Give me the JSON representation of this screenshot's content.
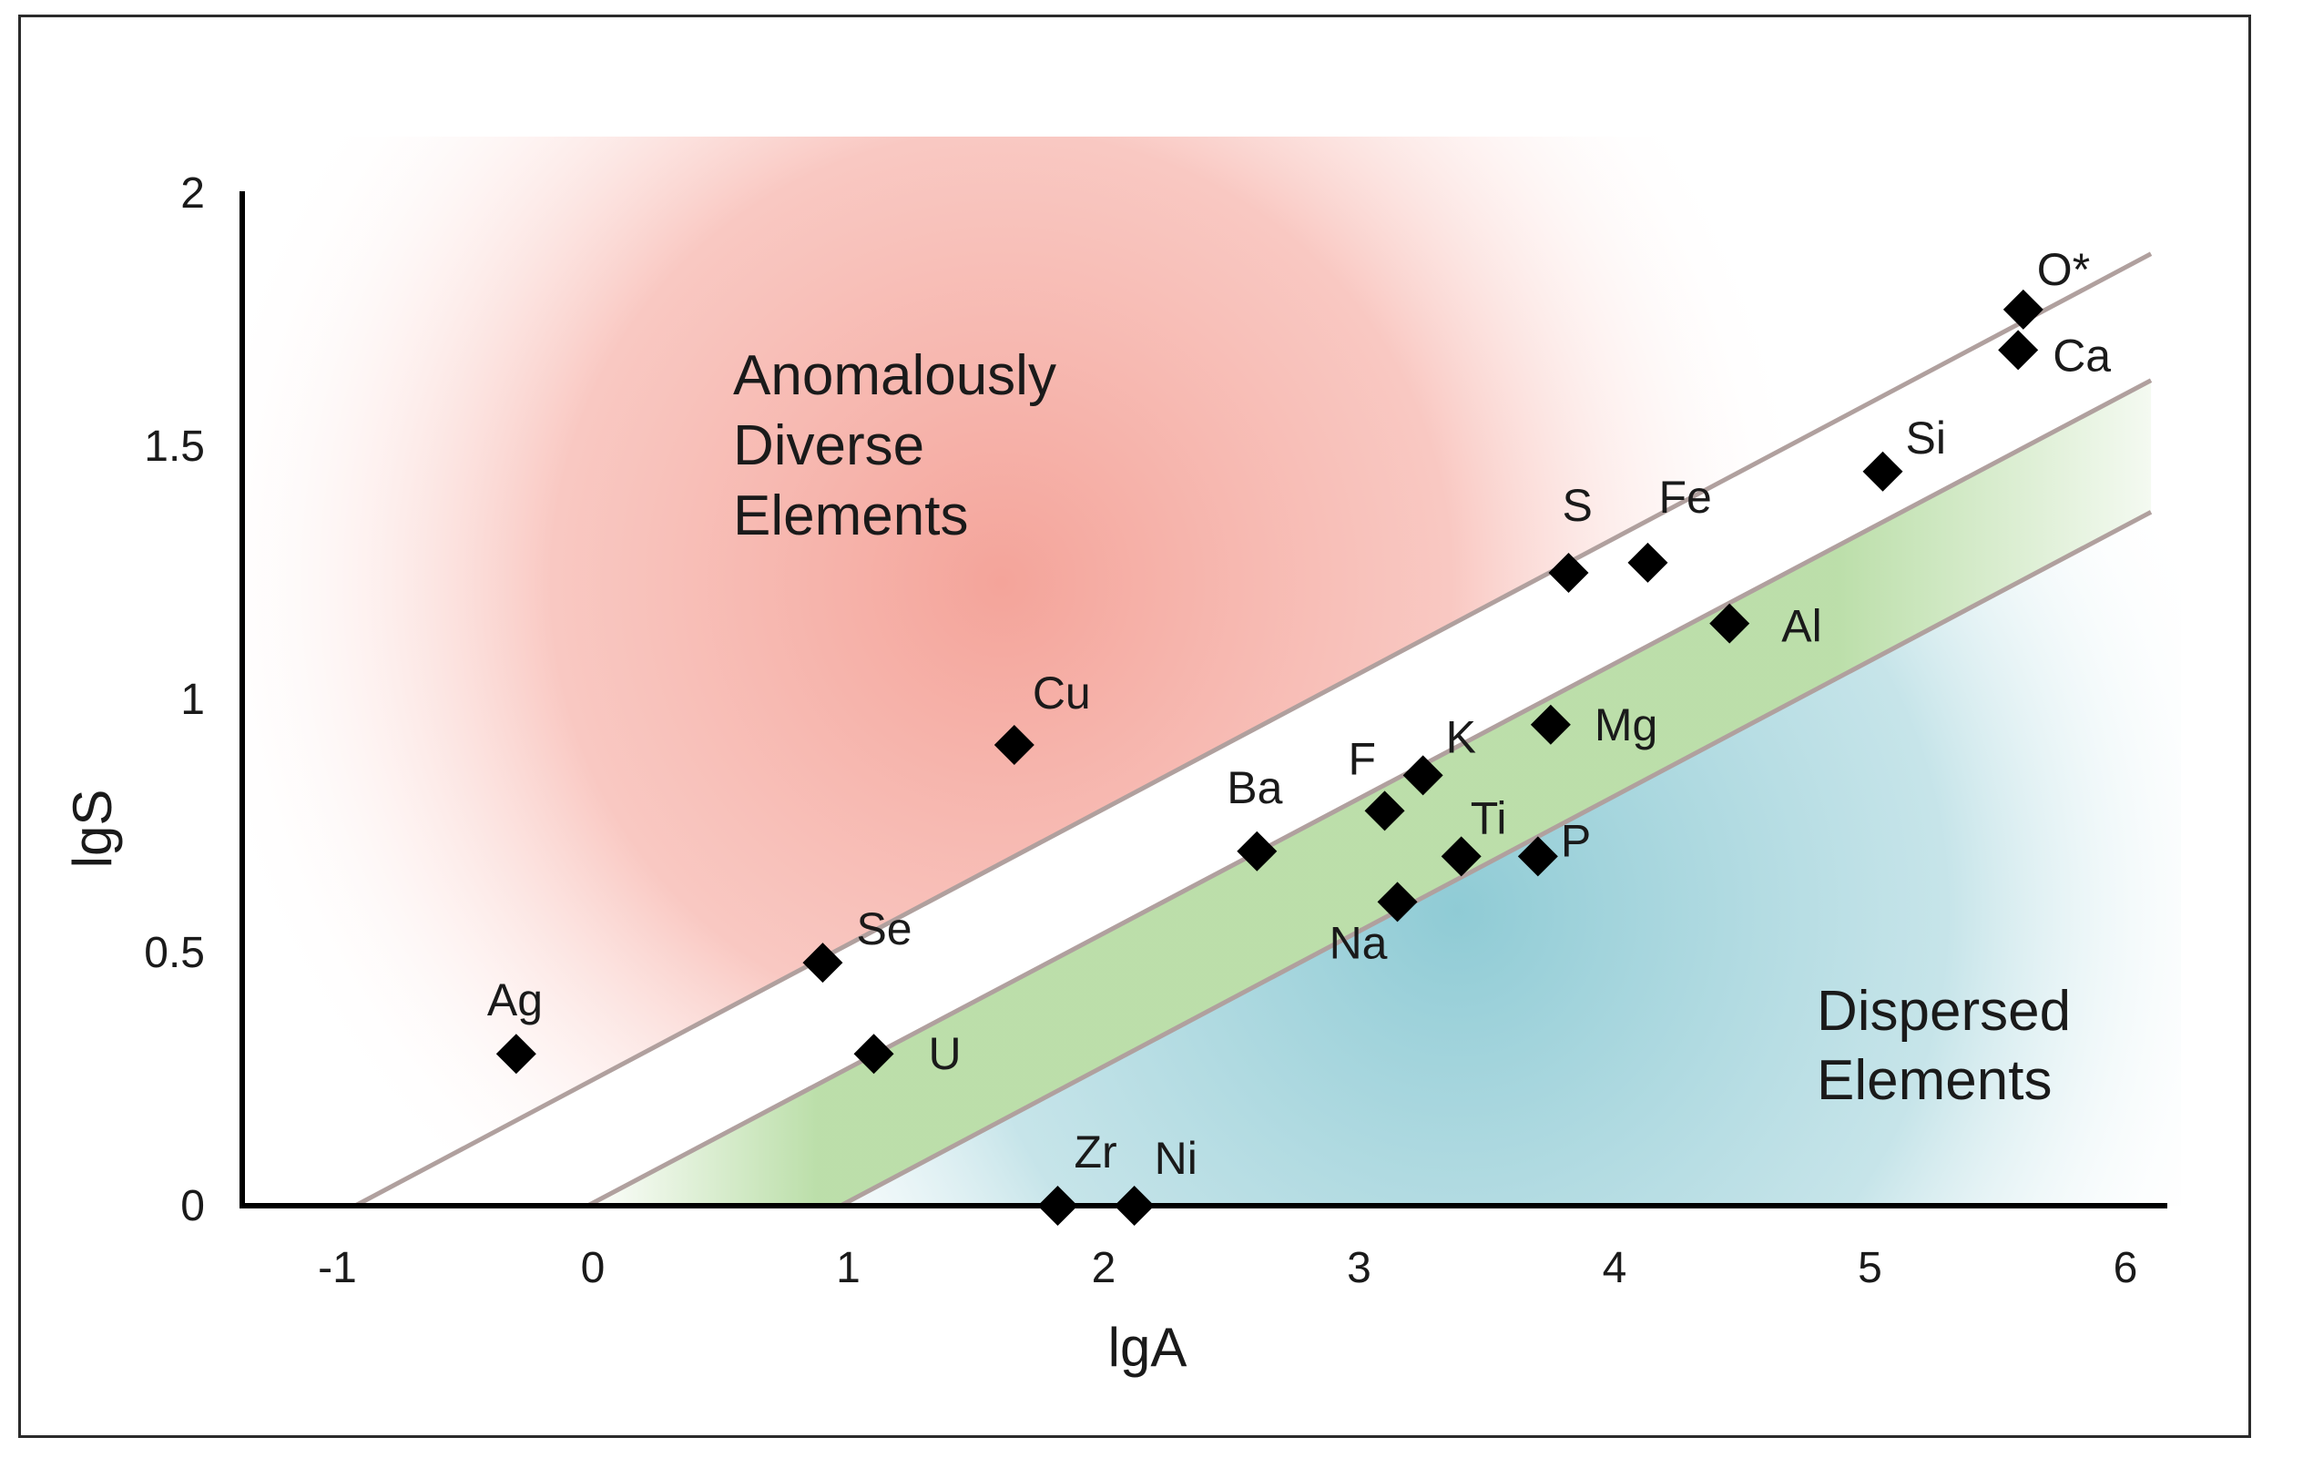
{
  "chart_data": {
    "type": "scatter",
    "title": "",
    "xlabel": "lgA",
    "ylabel": "lgS",
    "xlim": [
      -1.4,
      6.2
    ],
    "ylim": [
      0,
      2
    ],
    "x_ticks": [
      "-1",
      "0",
      "1",
      "2",
      "3",
      "4",
      "5",
      "6"
    ],
    "y_ticks": [
      "0",
      "0.5",
      "1",
      "1.5",
      "2"
    ],
    "grid": false,
    "region_labels": {
      "anomalous": [
        "Anomalously",
        "Diverse",
        "Elements"
      ],
      "dispersed": [
        "Dispersed",
        "Elements"
      ]
    },
    "reference_lines": [
      {
        "name": "upper",
        "x": [
          -0.93,
          6.1
        ],
        "y": [
          0,
          1.88
        ]
      },
      {
        "name": "middle",
        "x": [
          -0.02,
          6.1
        ],
        "y": [
          0,
          1.63
        ]
      },
      {
        "name": "lower",
        "x": [
          0.97,
          6.1
        ],
        "y": [
          0,
          1.37
        ]
      }
    ],
    "colors": {
      "anomalous": "#f4a49a",
      "dispersed": "#8fcbd5",
      "band": "#b4dba0",
      "line": "#b0a09e",
      "marker": "#000000"
    },
    "points": [
      {
        "label": "Ag",
        "x": -0.3,
        "y": 0.3
      },
      {
        "label": "Se",
        "x": 0.9,
        "y": 0.48
      },
      {
        "label": "U",
        "x": 1.1,
        "y": 0.3
      },
      {
        "label": "Cu",
        "x": 1.65,
        "y": 0.91
      },
      {
        "label": "Zr",
        "x": 1.82,
        "y": 0.0
      },
      {
        "label": "Ni",
        "x": 2.12,
        "y": 0.0
      },
      {
        "label": "Ba",
        "x": 2.6,
        "y": 0.7
      },
      {
        "label": "F",
        "x": 3.1,
        "y": 0.78
      },
      {
        "label": "Na",
        "x": 3.15,
        "y": 0.6
      },
      {
        "label": "K",
        "x": 3.25,
        "y": 0.85
      },
      {
        "label": "Ti",
        "x": 3.4,
        "y": 0.69
      },
      {
        "label": "P",
        "x": 3.7,
        "y": 0.69
      },
      {
        "label": "Mg",
        "x": 3.75,
        "y": 0.95
      },
      {
        "label": "S",
        "x": 3.82,
        "y": 1.25
      },
      {
        "label": "Fe",
        "x": 4.13,
        "y": 1.27
      },
      {
        "label": "Al",
        "x": 4.45,
        "y": 1.15
      },
      {
        "label": "Si",
        "x": 5.05,
        "y": 1.45
      },
      {
        "label": "Ca",
        "x": 5.58,
        "y": 1.69
      },
      {
        "label": "O*",
        "x": 5.6,
        "y": 1.77
      }
    ]
  }
}
